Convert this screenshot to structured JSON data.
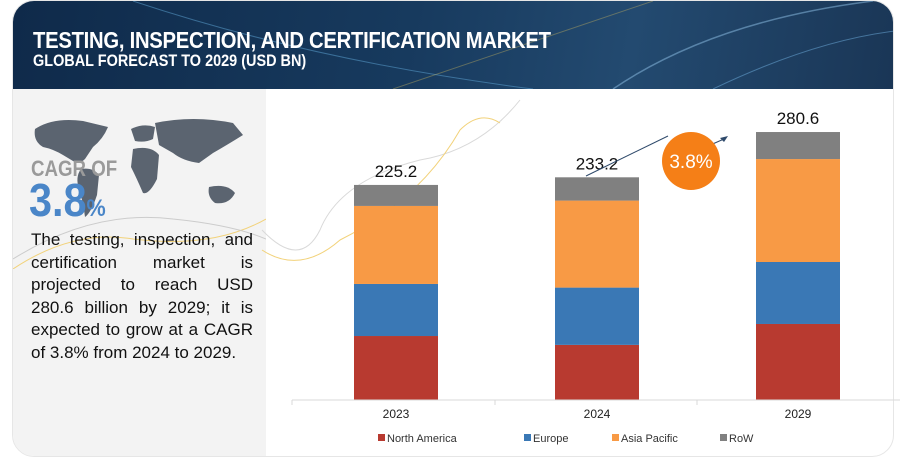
{
  "header": {
    "title": "TESTING, INSPECTION, AND CERTIFICATION MARKET",
    "subtitle": "GLOBAL FORECAST TO 2029 (USD BN)"
  },
  "left_panel": {
    "cagr_label": "CAGR OF",
    "cagr_value": "3.8",
    "cagr_unit": "%",
    "description": "The testing, inspection, and certification market is projected to reach USD 280.6 billion by 2029; it is expected to grow at a CAGR of 3.8% from 2024 to 2029."
  },
  "colors": {
    "north_america": "#b83a30",
    "europe": "#3a78b5",
    "asia_pacific": "#f89a45",
    "row": "#808080",
    "badge": "#f57f17"
  },
  "chart_data": {
    "type": "bar",
    "stacked": true,
    "title": "",
    "xlabel": "",
    "ylabel": "",
    "categories": [
      "2023",
      "2024",
      "2029"
    ],
    "totals": [
      "225.2",
      "233.2",
      "280.6"
    ],
    "series": [
      {
        "name": "North America",
        "values": [
          67.0,
          57.7,
          79.6
        ]
      },
      {
        "name": "Europe",
        "values": [
          54.5,
          60.0,
          64.9
        ]
      },
      {
        "name": "Asia Pacific",
        "values": [
          81.7,
          91.1,
          107.8
        ]
      },
      {
        "name": "RoW",
        "values": [
          22.0,
          24.4,
          28.3
        ]
      }
    ],
    "annotation": "3.8%",
    "legend_position": "bottom",
    "grid": false
  }
}
